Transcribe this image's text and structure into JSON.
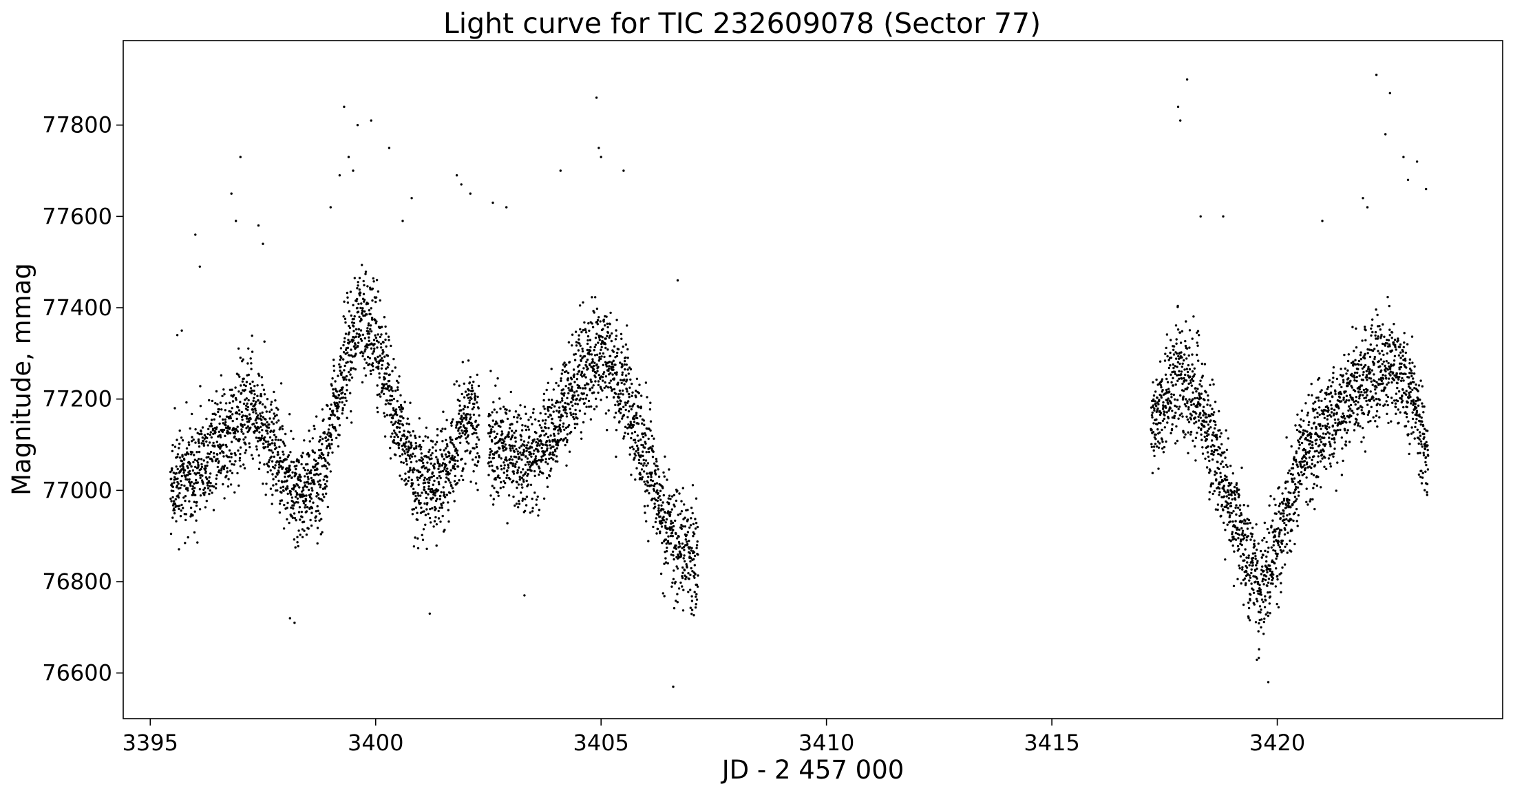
{
  "chart_data": {
    "type": "scatter",
    "title": "Light curve for TIC 232609078 (Sector 77)",
    "xlabel": "JD - 2 457 000",
    "ylabel": "Magnitude, mmag",
    "xlim": [
      3394.4,
      3425.0
    ],
    "ylim": [
      76500,
      77985
    ],
    "grid": false,
    "legend": "none",
    "marker_color": "#000000",
    "x_ticks": [
      3395,
      3400,
      3405,
      3410,
      3415,
      3420
    ],
    "x_tick_labels": [
      "3395",
      "3400",
      "3405",
      "3410",
      "3415",
      "3420"
    ],
    "y_ticks": [
      76600,
      76800,
      77000,
      77200,
      77400,
      77600,
      77800
    ],
    "y_tick_labels": [
      "76600",
      "76800",
      "77000",
      "77200",
      "77400",
      "77600",
      "77800"
    ],
    "series": [
      {
        "segments": [
          [
            3395.45,
            3402.3
          ],
          [
            3402.5,
            3407.15
          ],
          [
            3417.2,
            3423.35
          ]
        ],
        "trend": [
          [
            3395.45,
            76990
          ],
          [
            3396.2,
            77060
          ],
          [
            3396.9,
            77150
          ],
          [
            3397.3,
            77180
          ],
          [
            3397.8,
            77080
          ],
          [
            3398.3,
            76990
          ],
          [
            3398.8,
            77040
          ],
          [
            3399.2,
            77220
          ],
          [
            3399.6,
            77380
          ],
          [
            3400.0,
            77330
          ],
          [
            3400.5,
            77150
          ],
          [
            3401.0,
            77010
          ],
          [
            3401.5,
            77020
          ],
          [
            3402.0,
            77160
          ],
          [
            3402.3,
            77140
          ],
          [
            3402.5,
            77100
          ],
          [
            3403.0,
            77080
          ],
          [
            3403.5,
            77060
          ],
          [
            3404.0,
            77140
          ],
          [
            3404.5,
            77260
          ],
          [
            3405.0,
            77300
          ],
          [
            3405.5,
            77220
          ],
          [
            3406.0,
            77080
          ],
          [
            3406.5,
            76900
          ],
          [
            3407.15,
            76840
          ],
          [
            3417.2,
            77140
          ],
          [
            3417.8,
            77260
          ],
          [
            3418.3,
            77180
          ],
          [
            3418.8,
            77020
          ],
          [
            3419.3,
            76860
          ],
          [
            3419.6,
            76780
          ],
          [
            3420.0,
            76880
          ],
          [
            3420.6,
            77080
          ],
          [
            3421.2,
            77160
          ],
          [
            3421.8,
            77220
          ],
          [
            3422.4,
            77280
          ],
          [
            3423.0,
            77220
          ],
          [
            3423.35,
            77060
          ]
        ],
        "scatter_sd": 80,
        "outliers": [
          [
            3395.6,
            77340
          ],
          [
            3395.7,
            77350
          ],
          [
            3396.0,
            77560
          ],
          [
            3396.1,
            77490
          ],
          [
            3396.8,
            77650
          ],
          [
            3396.9,
            77590
          ],
          [
            3397.0,
            77730
          ],
          [
            3397.4,
            77580
          ],
          [
            3397.5,
            77540
          ],
          [
            3398.1,
            76720
          ],
          [
            3398.2,
            76710
          ],
          [
            3399.0,
            77620
          ],
          [
            3399.2,
            77690
          ],
          [
            3399.3,
            77840
          ],
          [
            3399.4,
            77730
          ],
          [
            3399.5,
            77700
          ],
          [
            3399.6,
            77800
          ],
          [
            3399.9,
            77810
          ],
          [
            3400.3,
            77750
          ],
          [
            3400.6,
            77590
          ],
          [
            3400.8,
            77640
          ],
          [
            3401.2,
            76730
          ],
          [
            3401.8,
            77690
          ],
          [
            3401.9,
            77670
          ],
          [
            3402.1,
            77650
          ],
          [
            3402.6,
            77630
          ],
          [
            3402.9,
            77620
          ],
          [
            3403.3,
            76770
          ],
          [
            3404.1,
            77700
          ],
          [
            3404.9,
            77860
          ],
          [
            3404.95,
            77750
          ],
          [
            3405.0,
            77730
          ],
          [
            3405.5,
            77700
          ],
          [
            3406.6,
            76570
          ],
          [
            3406.7,
            77460
          ],
          [
            3417.8,
            77840
          ],
          [
            3417.85,
            77810
          ],
          [
            3418.0,
            77900
          ],
          [
            3418.3,
            77600
          ],
          [
            3418.8,
            77600
          ],
          [
            3419.8,
            76580
          ],
          [
            3421.0,
            77590
          ],
          [
            3421.9,
            77640
          ],
          [
            3422.0,
            77620
          ],
          [
            3422.2,
            77910
          ],
          [
            3422.4,
            77780
          ],
          [
            3422.5,
            77870
          ],
          [
            3422.8,
            77730
          ],
          [
            3422.9,
            77680
          ],
          [
            3423.1,
            77720
          ],
          [
            3423.3,
            77660
          ]
        ]
      }
    ]
  }
}
